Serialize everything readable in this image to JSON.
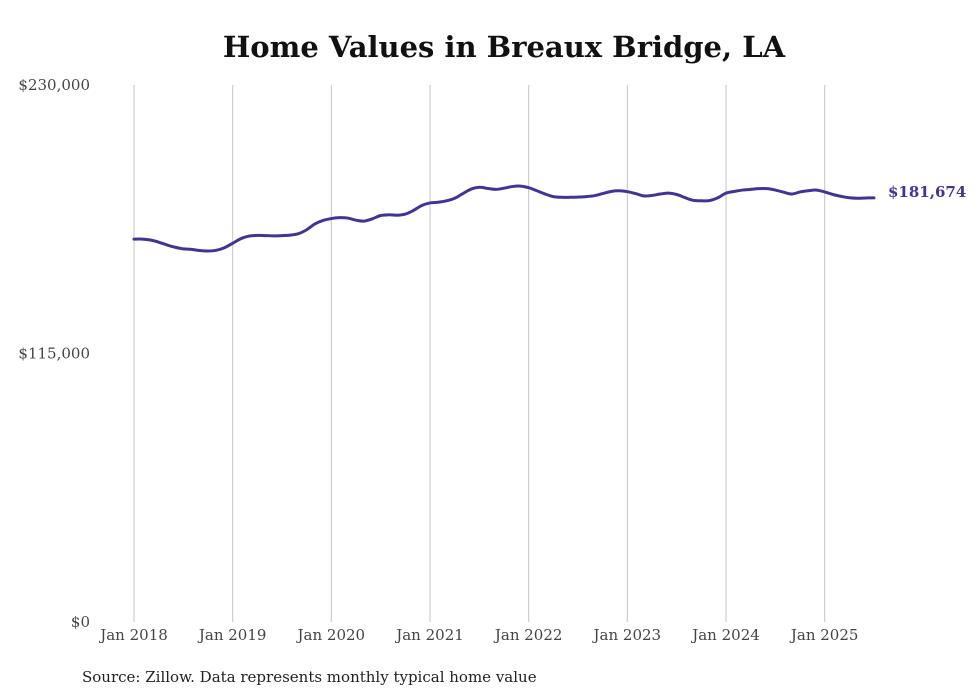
{
  "colors": {
    "series": "#3f3597",
    "grid": "#c4c4c4",
    "text": "#444444"
  },
  "source_note": "Source: Zillow. Data represents monthly typical home value",
  "chart_data": {
    "type": "line",
    "title": "Home Values in Breaux Bridge, LA",
    "xlabel": "",
    "ylabel": "",
    "ylim": [
      0,
      230000
    ],
    "y_ticks": [
      {
        "value": 0,
        "label": "$0"
      },
      {
        "value": 115000,
        "label": "$115,000"
      },
      {
        "value": 230000,
        "label": "$230,000"
      }
    ],
    "x_ticks": [
      {
        "date": "2018-01",
        "label": "Jan 2018"
      },
      {
        "date": "2019-01",
        "label": "Jan 2019"
      },
      {
        "date": "2020-01",
        "label": "Jan 2020"
      },
      {
        "date": "2021-01",
        "label": "Jan 2021"
      },
      {
        "date": "2022-01",
        "label": "Jan 2022"
      },
      {
        "date": "2023-01",
        "label": "Jan 2023"
      },
      {
        "date": "2024-01",
        "label": "Jan 2024"
      },
      {
        "date": "2025-01",
        "label": "Jan 2025"
      }
    ],
    "grid": "vertical",
    "end_label": "$181,674",
    "series": [
      {
        "x": [
          "2018-01",
          "2018-02",
          "2018-03",
          "2018-04",
          "2018-05",
          "2018-06",
          "2018-07",
          "2018-08",
          "2018-09",
          "2018-10",
          "2018-11",
          "2018-12",
          "2019-01",
          "2019-02",
          "2019-03",
          "2019-04",
          "2019-05",
          "2019-06",
          "2019-07",
          "2019-08",
          "2019-09",
          "2019-10",
          "2019-11",
          "2019-12",
          "2020-01",
          "2020-02",
          "2020-03",
          "2020-04",
          "2020-05",
          "2020-06",
          "2020-07",
          "2020-08",
          "2020-09",
          "2020-10",
          "2020-11",
          "2020-12",
          "2021-01",
          "2021-02",
          "2021-03",
          "2021-04",
          "2021-05",
          "2021-06",
          "2021-07",
          "2021-08",
          "2021-09",
          "2021-10",
          "2021-11",
          "2021-12",
          "2022-01",
          "2022-02",
          "2022-03",
          "2022-04",
          "2022-05",
          "2022-06",
          "2022-07",
          "2022-08",
          "2022-09",
          "2022-10",
          "2022-11",
          "2022-12",
          "2023-01",
          "2023-02",
          "2023-03",
          "2023-04",
          "2023-05",
          "2023-06",
          "2023-07",
          "2023-08",
          "2023-09",
          "2023-10",
          "2023-11",
          "2023-12",
          "2024-01",
          "2024-02",
          "2024-03",
          "2024-04",
          "2024-05",
          "2024-06",
          "2024-07",
          "2024-08",
          "2024-09",
          "2024-10",
          "2024-11",
          "2024-12",
          "2025-01",
          "2025-02",
          "2025-03",
          "2025-04",
          "2025-05",
          "2025-06",
          "2025-07"
        ],
        "values": [
          164000,
          164000,
          163600,
          162700,
          161500,
          160500,
          159800,
          159600,
          159100,
          158900,
          159200,
          160300,
          162200,
          164200,
          165300,
          165600,
          165500,
          165400,
          165500,
          165700,
          166300,
          168000,
          170500,
          172000,
          172800,
          173200,
          173000,
          172100,
          171700,
          172700,
          174100,
          174400,
          174200,
          174700,
          176300,
          178400,
          179500,
          179800,
          180400,
          181500,
          183500,
          185400,
          186200,
          185700,
          185300,
          185800,
          186500,
          186700,
          186000,
          184700,
          183300,
          182200,
          181900,
          181900,
          182000,
          182200,
          182600,
          183500,
          184400,
          184700,
          184300,
          183500,
          182500,
          182700,
          183300,
          183700,
          183100,
          181800,
          180600,
          180400,
          180500,
          181700,
          183700,
          184400,
          185000,
          185300,
          185600,
          185600,
          185000,
          184100,
          183300,
          184200,
          184700,
          185000,
          184200,
          183100,
          182300,
          181700,
          181500,
          181600,
          181674
        ]
      }
    ]
  }
}
